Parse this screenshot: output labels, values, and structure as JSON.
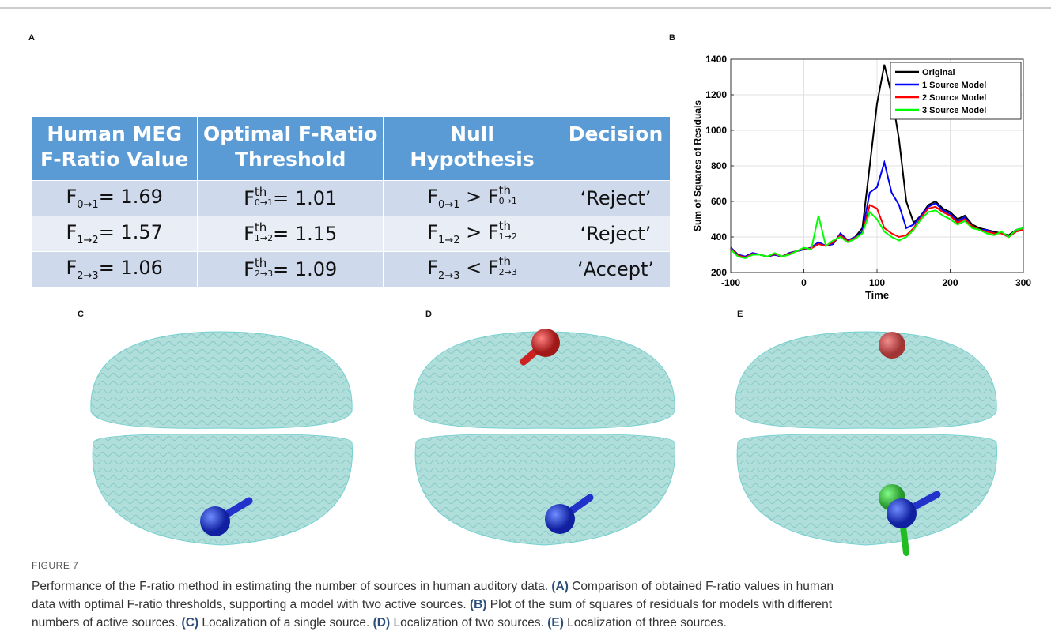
{
  "panels": {
    "a": "A",
    "b": "B",
    "c": "C",
    "d": "D",
    "e": "E"
  },
  "table": {
    "header": [
      [
        "Human MEG",
        "F-Ratio Value"
      ],
      [
        "Optimal F-Ratio",
        "Threshold"
      ],
      [
        "Null Hypothesis"
      ],
      [
        "Decision"
      ]
    ],
    "rows": [
      [
        [
          {
            "t": "F"
          },
          {
            "sub": "0→1"
          },
          {
            "t": "= 1.69"
          }
        ],
        [
          {
            "t": "F"
          },
          {
            "sup": "th",
            "sub": "0→1"
          },
          {
            "t": "= 1.01"
          }
        ],
        [
          {
            "t": "F"
          },
          {
            "sub": "0→1"
          },
          {
            "t": " > F"
          },
          {
            "sup": "th",
            "sub": "0→1"
          }
        ],
        [
          {
            "t": "‘Reject’"
          }
        ]
      ],
      [
        [
          {
            "t": "F"
          },
          {
            "sub": "1→2"
          },
          {
            "t": "= 1.57"
          }
        ],
        [
          {
            "t": "F"
          },
          {
            "sup": "th",
            "sub": "1→2"
          },
          {
            "t": "= 1.15"
          }
        ],
        [
          {
            "t": "F"
          },
          {
            "sub": "1→2"
          },
          {
            "t": " > F"
          },
          {
            "sup": "th",
            "sub": "1→2"
          }
        ],
        [
          {
            "t": "‘Reject’"
          }
        ]
      ],
      [
        [
          {
            "t": "F"
          },
          {
            "sub": "2→3"
          },
          {
            "t": "= 1.06"
          }
        ],
        [
          {
            "t": "F"
          },
          {
            "sup": "th",
            "sub": "2→3"
          },
          {
            "t": "= 1.09"
          }
        ],
        [
          {
            "t": "F"
          },
          {
            "sub": "2→3"
          },
          {
            "t": " < F"
          },
          {
            "sup": "th",
            "sub": "2→3"
          }
        ],
        [
          {
            "t": "‘Accept’"
          }
        ]
      ]
    ]
  },
  "chart_data": {
    "type": "line",
    "x_label": "Time",
    "y_label": "Sum of Squares of Residuals",
    "x": [
      -100,
      -90,
      -80,
      -70,
      -60,
      -50,
      -40,
      -30,
      -20,
      -10,
      0,
      10,
      20,
      30,
      40,
      50,
      60,
      70,
      80,
      90,
      100,
      110,
      120,
      130,
      140,
      150,
      160,
      170,
      180,
      190,
      200,
      210,
      220,
      230,
      240,
      250,
      260,
      270,
      280,
      290,
      300
    ],
    "series": [
      {
        "name": "Original",
        "color": "#000000",
        "values": [
          340,
          300,
          290,
          310,
          300,
          290,
          300,
          290,
          310,
          320,
          330,
          340,
          370,
          350,
          360,
          420,
          380,
          400,
          450,
          800,
          1150,
          1370,
          1200,
          950,
          600,
          480,
          520,
          580,
          600,
          560,
          540,
          500,
          520,
          470,
          450,
          440,
          430,
          420,
          410,
          440,
          450
        ]
      },
      {
        "name": "1 Source Model",
        "color": "#0000ff",
        "values": [
          340,
          300,
          290,
          310,
          300,
          290,
          300,
          290,
          310,
          320,
          330,
          340,
          370,
          350,
          360,
          420,
          380,
          400,
          430,
          650,
          680,
          820,
          650,
          580,
          450,
          470,
          520,
          570,
          590,
          550,
          530,
          490,
          510,
          460,
          440,
          440,
          420,
          420,
          400,
          440,
          450
        ]
      },
      {
        "name": "2 Source Model",
        "color": "#ff0000",
        "values": [
          335,
          295,
          285,
          305,
          300,
          290,
          305,
          290,
          305,
          320,
          335,
          335,
          360,
          350,
          370,
          410,
          375,
          395,
          420,
          580,
          560,
          450,
          420,
          400,
          410,
          450,
          510,
          560,
          570,
          540,
          520,
          480,
          500,
          460,
          440,
          430,
          420,
          420,
          400,
          430,
          440
        ]
      },
      {
        "name": "3 Source Model",
        "color": "#00ff00",
        "values": [
          330,
          290,
          280,
          300,
          300,
          290,
          310,
          290,
          300,
          320,
          340,
          330,
          520,
          350,
          380,
          400,
          370,
          390,
          420,
          540,
          500,
          430,
          400,
          380,
          400,
          440,
          500,
          540,
          550,
          520,
          500,
          470,
          490,
          450,
          440,
          420,
          410,
          430,
          400,
          440,
          450
        ]
      }
    ],
    "xlim": [
      -100,
      300
    ],
    "xticks": [
      -100,
      0,
      100,
      200,
      300
    ],
    "ylim": [
      200,
      1400
    ],
    "yticks": [
      200,
      400,
      600,
      800,
      1000,
      1200,
      1400
    ],
    "grid": true,
    "legend": "top-right"
  },
  "figure_label": "FIGURE 7",
  "caption": [
    [
      {
        "t": "Performance of the F-ratio method in estimating the number of sources in human auditory data. "
      },
      {
        "b": "(A)"
      },
      {
        "t": " Comparison of obtained F-ratio values in human"
      }
    ],
    [
      {
        "t": "data with optimal F-ratio thresholds, supporting a model with two active sources. "
      },
      {
        "b": "(B)"
      },
      {
        "t": " Plot of the sum of squares of residuals for models with different"
      }
    ],
    [
      {
        "t": "numbers of active sources. "
      },
      {
        "b": "(C)"
      },
      {
        "t": " Localization of a single source. "
      },
      {
        "b": "(D)"
      },
      {
        "t": " Localization of two sources. "
      },
      {
        "b": "(E)"
      },
      {
        "t": " Localization of three sources."
      }
    ]
  ]
}
